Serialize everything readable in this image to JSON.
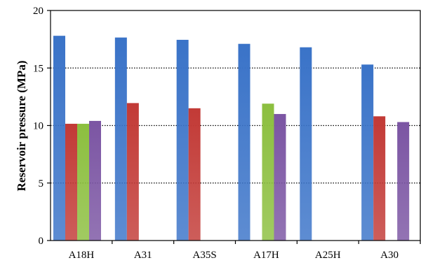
{
  "chart_data": {
    "type": "bar",
    "title": "",
    "xlabel": "",
    "ylabel": "Reservoir pressure (MPa)",
    "ylim": [
      0,
      20
    ],
    "yticks": [
      0,
      5,
      10,
      15,
      20
    ],
    "grid": "horizontal dotted",
    "legend": "none",
    "categories": [
      "A18H",
      "A31",
      "A35S",
      "A17H",
      "A25H",
      "A30"
    ],
    "series": [
      {
        "color": "#3a73c8",
        "values": [
          17.8,
          17.65,
          17.45,
          17.1,
          16.8,
          15.3
        ]
      },
      {
        "color": "#c23a36",
        "values": [
          10.15,
          11.95,
          11.5,
          null,
          null,
          10.8
        ]
      },
      {
        "color": "#8cbf3f",
        "values": [
          10.15,
          null,
          null,
          11.9,
          null,
          null
        ]
      },
      {
        "color": "#7b55a3",
        "values": [
          10.4,
          null,
          null,
          11.0,
          null,
          10.3
        ]
      }
    ]
  }
}
